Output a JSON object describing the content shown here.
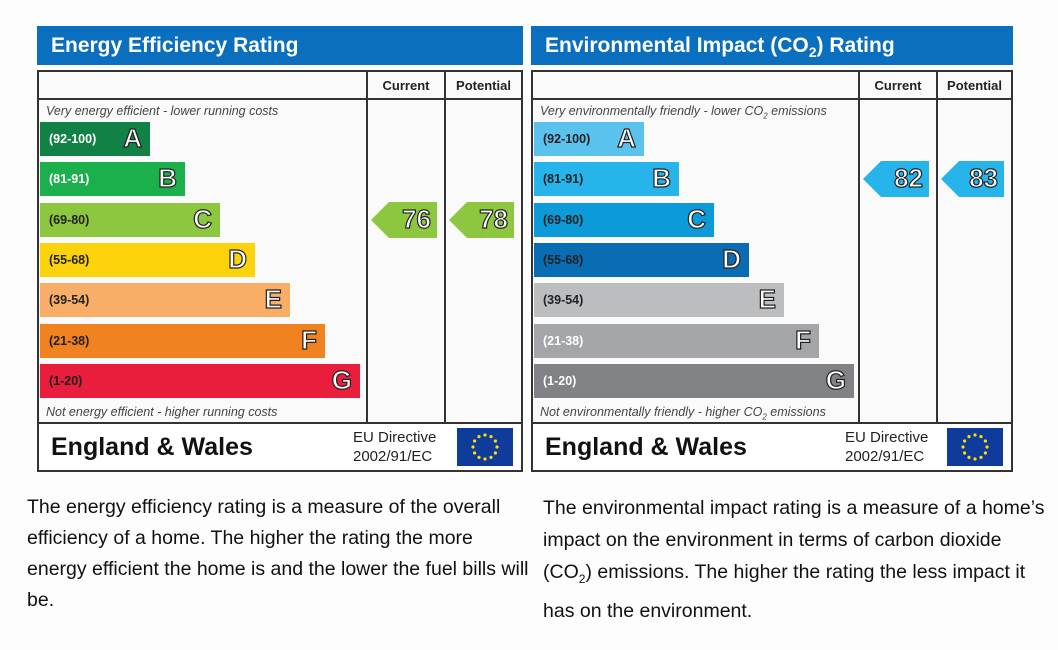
{
  "chart_data": [
    {
      "type": "bar",
      "title": "Energy Efficiency Rating",
      "columns": [
        "Current",
        "Potential"
      ],
      "top_note": "Very energy efficient - lower running costs",
      "bottom_note": "Not energy efficient - higher running costs",
      "bands": [
        {
          "range": "(92-100)",
          "letter": "A",
          "color": "#128145",
          "text_color": "#ffffff"
        },
        {
          "range": "(81-91)",
          "letter": "B",
          "color": "#1cb04d",
          "text_color": "#ffffff"
        },
        {
          "range": "(69-80)",
          "letter": "C",
          "color": "#8dc63f",
          "text_color": "#222222"
        },
        {
          "range": "(55-68)",
          "letter": "D",
          "color": "#fcd20a",
          "text_color": "#222222"
        },
        {
          "range": "(39-54)",
          "letter": "E",
          "color": "#f8ae66",
          "text_color": "#222222"
        },
        {
          "range": "(21-38)",
          "letter": "F",
          "color": "#f08220",
          "text_color": "#222222"
        },
        {
          "range": "(1-20)",
          "letter": "G",
          "color": "#e81e3c",
          "text_color": "#222222"
        }
      ],
      "current": 76,
      "potential": 78,
      "arrow_color": "#8dc63f",
      "footer": {
        "region": "England & Wales",
        "directive_line1": "EU Directive",
        "directive_line2": "2002/91/EC"
      }
    },
    {
      "type": "bar",
      "title_main": "Environmental Impact (CO",
      "title_sub": "2",
      "title_end": ") Rating",
      "columns": [
        "Current",
        "Potential"
      ],
      "top_note_main": "Very environmentally friendly - lower CO",
      "top_note_sub": "2",
      "top_note_end": " emissions",
      "bottom_note_main": "Not environmentally friendly - higher CO",
      "bottom_note_sub": "2",
      "bottom_note_end": " emissions",
      "bands": [
        {
          "range": "(92-100)",
          "letter": "A",
          "color": "#5bc2ee",
          "text_color": "#222222"
        },
        {
          "range": "(81-91)",
          "letter": "B",
          "color": "#27b4ea",
          "text_color": "#222222"
        },
        {
          "range": "(69-80)",
          "letter": "C",
          "color": "#0d9ad9",
          "text_color": "#222222"
        },
        {
          "range": "(55-68)",
          "letter": "D",
          "color": "#0a6db4",
          "text_color": "#222222"
        },
        {
          "range": "(39-54)",
          "letter": "E",
          "color": "#bcbdbf",
          "text_color": "#222222"
        },
        {
          "range": "(21-38)",
          "letter": "F",
          "color": "#a3a5a8",
          "text_color": "#ffffff"
        },
        {
          "range": "(1-20)",
          "letter": "G",
          "color": "#808285",
          "text_color": "#ffffff"
        }
      ],
      "current": 82,
      "potential": 83,
      "arrow_color": "#27b4ea",
      "footer": {
        "region": "England & Wales",
        "directive_line1": "EU Directive",
        "directive_line2": "2002/91/EC"
      }
    }
  ],
  "descriptions": {
    "energy": "The energy efficiency rating is a measure of the overall efficiency of a home. The higher the rating the more energy efficient the home is and the lower the fuel bills will be.",
    "env_part1": "The environmental impact rating is a measure of a home’s impact on the environment in terms of carbon dioxide (CO",
    "env_sub": "2",
    "env_part2": ") emissions. The higher the rating the less impact it has on the environment."
  }
}
